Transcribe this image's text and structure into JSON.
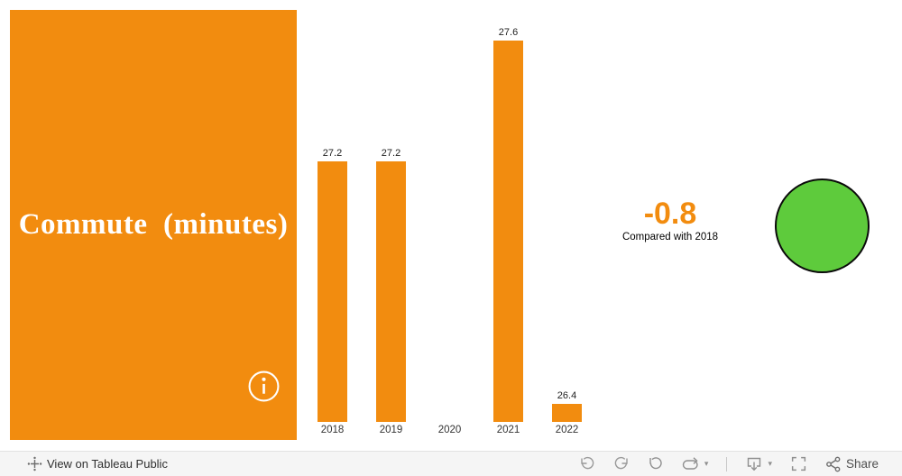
{
  "dashboard": {
    "title_card": {
      "title": "Commute  (minutes)",
      "bg_color": "#F28C0F",
      "text_color": "#FFFFFF"
    },
    "kpi": {
      "value": "-0.8",
      "value_color": "#F28C0F",
      "caption": "Compared with 2018"
    },
    "indicator": {
      "shape": "circle",
      "fill_color": "#5ECB3C",
      "border_color": "#0A0A0A"
    }
  },
  "chart_data": {
    "type": "bar",
    "title": "Commute (minutes)",
    "categories": [
      "2018",
      "2019",
      "2020",
      "2021",
      "2022"
    ],
    "values": [
      27.2,
      27.2,
      null,
      27.6,
      26.4
    ],
    "bar_labels": [
      "27.2",
      "27.2",
      null,
      "27.6",
      "26.4"
    ],
    "bar_color": "#F28C0F",
    "label_color": "#1E1E1E",
    "xlabel": "",
    "ylabel": "",
    "ylim": [
      26.34,
      27.6
    ],
    "grid": false,
    "legend": false
  },
  "toolbar": {
    "view_on_tableau_public": "View on Tableau Public",
    "share_label": "Share",
    "icon_color": "#8F8F8F"
  }
}
